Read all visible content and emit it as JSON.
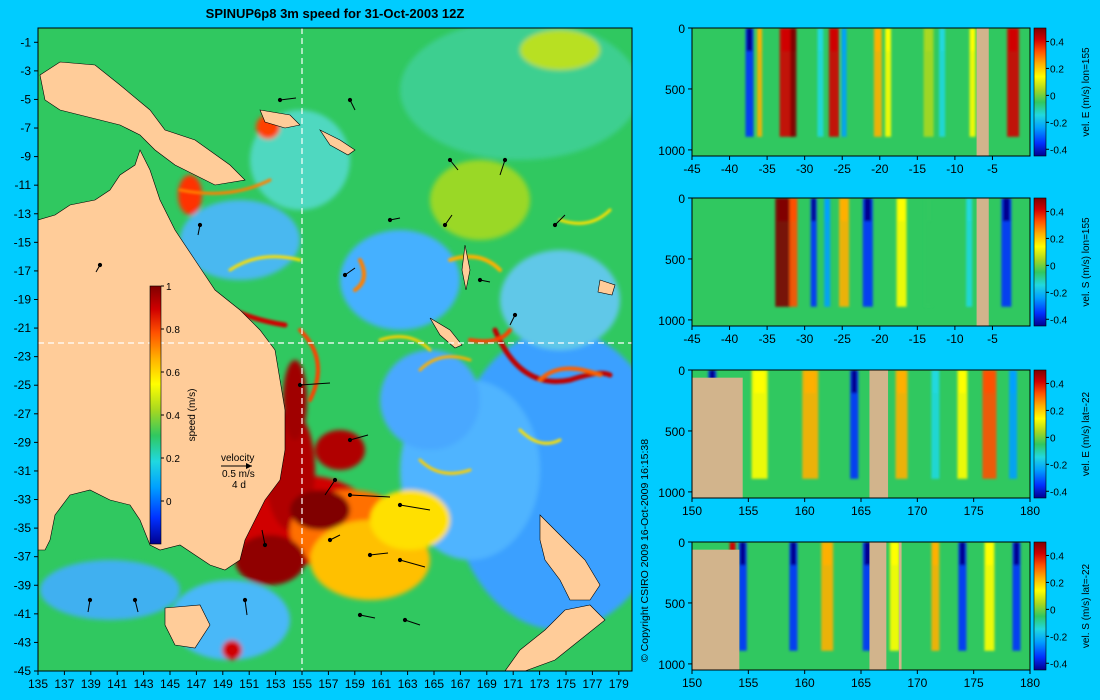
{
  "title": "SPINUP6p8 3m speed for 31-Oct-2003 12Z",
  "copyright": "© Copyright CSIRO 2009   16-Oct-2009 16:15:38",
  "colors": {
    "background": "#00ccff",
    "land": "#ffcc99",
    "section_land": "#d2b48c",
    "colormap": [
      "#00008f",
      "#0030ff",
      "#00a0ff",
      "#20d8e0",
      "#30c860",
      "#a8d820",
      "#ffff00",
      "#ffb000",
      "#ff5000",
      "#d00000",
      "#800000"
    ]
  },
  "chart_data": [
    {
      "type": "heatmap",
      "title": "SPINUP6p8 3m speed for 31-Oct-2003 12Z",
      "x_ticks": [
        "135",
        "137",
        "139",
        "141",
        "143",
        "145",
        "147",
        "149",
        "151",
        "153",
        "155",
        "157",
        "159",
        "161",
        "163",
        "165",
        "167",
        "169",
        "171",
        "173",
        "175",
        "177",
        "179"
      ],
      "y_ticks": [
        "-1",
        "-3",
        "-5",
        "-7",
        "-9",
        "-11",
        "-13",
        "-15",
        "-17",
        "-19",
        "-21",
        "-23",
        "-25",
        "-27",
        "-29",
        "-31",
        "-33",
        "-35",
        "-37",
        "-39",
        "-41",
        "-43",
        "-45"
      ],
      "xlim": [
        135,
        180
      ],
      "ylim": [
        -45,
        0
      ],
      "section_lines": {
        "lon": 155,
        "lat": -22
      },
      "colorbar": {
        "label": "speed (m/s)",
        "ticks": [
          "1",
          "0.8",
          "0.6",
          "0.4",
          "0.2",
          "0"
        ],
        "range": [
          -0.2,
          1.0
        ]
      },
      "velocity_key": {
        "label": "velocity",
        "scale": "0.5 m/s",
        "interval": "4 d"
      }
    },
    {
      "type": "heatmap",
      "x_ticks": [
        "-45",
        "-40",
        "-35",
        "-30",
        "-25",
        "-20",
        "-15",
        "-10",
        "-5"
      ],
      "y_ticks": [
        "0",
        "500",
        "1000"
      ],
      "xlim": [
        -45,
        0
      ],
      "ylim": [
        0,
        1050
      ],
      "colorbar": {
        "label": "vel. E (m/s) lon=155",
        "ticks": [
          "0.4",
          "0.2",
          "0",
          "-0.2",
          "-0.4"
        ],
        "range": [
          -0.45,
          0.5
        ]
      }
    },
    {
      "type": "heatmap",
      "x_ticks": [
        "-45",
        "-40",
        "-35",
        "-30",
        "-25",
        "-20",
        "-15",
        "-10",
        "-5"
      ],
      "y_ticks": [
        "0",
        "500",
        "1000"
      ],
      "xlim": [
        -45,
        0
      ],
      "ylim": [
        0,
        1050
      ],
      "colorbar": {
        "label": "vel. S (m/s) lon=155",
        "ticks": [
          "0.4",
          "0.2",
          "0",
          "-0.2",
          "-0.4"
        ],
        "range": [
          -0.45,
          0.5
        ]
      }
    },
    {
      "type": "heatmap",
      "x_ticks": [
        "150",
        "155",
        "160",
        "165",
        "170",
        "175",
        "180"
      ],
      "y_ticks": [
        "0",
        "500",
        "1000"
      ],
      "xlim": [
        150,
        180
      ],
      "ylim": [
        0,
        1050
      ],
      "colorbar": {
        "label": "vel. E (m/s) lat=-22",
        "ticks": [
          "0.4",
          "0.2",
          "0",
          "-0.2",
          "-0.4"
        ],
        "range": [
          -0.45,
          0.5
        ]
      }
    },
    {
      "type": "heatmap",
      "x_ticks": [
        "150",
        "155",
        "160",
        "165",
        "170",
        "175",
        "180"
      ],
      "y_ticks": [
        "0",
        "500",
        "1000"
      ],
      "xlim": [
        150,
        180
      ],
      "ylim": [
        0,
        1050
      ],
      "colorbar": {
        "label": "vel. S (m/s) lat=-22",
        "ticks": [
          "0.4",
          "0.2",
          "0",
          "-0.2",
          "-0.4"
        ],
        "range": [
          -0.45,
          0.5
        ]
      }
    }
  ]
}
